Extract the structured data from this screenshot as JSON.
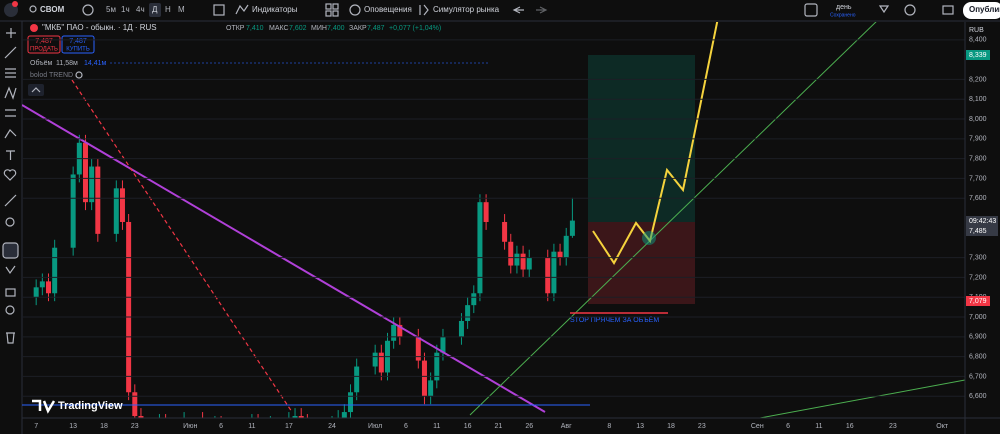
{
  "toolbar": {
    "symbol": "СВОМ",
    "intervals": [
      "5м",
      "1ч",
      "4ч",
      "Д",
      "Н",
      "М"
    ],
    "indicators": "Индикаторы",
    "alerts": "Оповещения",
    "replay": "Симулятор рынка",
    "timeframe": "день",
    "saved": "Сохранено",
    "publish": "Опублико"
  },
  "legend": {
    "symbol": "\"МКБ\" ПАО - обыкн. · 1Д · RUS",
    "open_label": "ОТКР",
    "open": "7,410",
    "high_label": "МАКС",
    "high": "7,602",
    "low_label": "МИН",
    "low": "7,400",
    "close_label": "ЗАКР",
    "close": "7,487",
    "change": "+0,077 (+1,04%)",
    "sell_price": "7,487",
    "sell": "ПРОДАТЬ",
    "buy_price": "7,487",
    "buy": "КУПИТЬ",
    "volume_label": "Объём",
    "volume": "11,58м",
    "volume_ma": "14,41м",
    "indicator": "bolod TREND"
  },
  "price_labels": {
    "target": "8,339",
    "time": "09:42:43",
    "last": "7,485",
    "stop": "7,079"
  },
  "annotation": "STOP ПРЯЧЕМ ЗА ОБЪЁМ",
  "brand": "TradingView",
  "chart_data": {
    "type": "candlestick",
    "currency": "RUB",
    "up_color": "#089981",
    "down_color": "#f23645",
    "xlim": [
      -2.3,
      150.7
    ],
    "ylim": [
      6.49,
      8.49
    ],
    "xticks": [
      {
        "value": 0,
        "label": "7"
      },
      {
        "value": 6,
        "label": "13"
      },
      {
        "value": 11,
        "label": "18"
      },
      {
        "value": 16,
        "label": "23"
      },
      {
        "value": 25,
        "label": "Июн"
      },
      {
        "value": 30,
        "label": "6"
      },
      {
        "value": 35,
        "label": "11"
      },
      {
        "value": 41,
        "label": "17"
      },
      {
        "value": 48,
        "label": "24"
      },
      {
        "value": 55,
        "label": "Июл"
      },
      {
        "value": 60,
        "label": "6"
      },
      {
        "value": 65,
        "label": "11"
      },
      {
        "value": 70,
        "label": "16"
      },
      {
        "value": 75,
        "label": "21"
      },
      {
        "value": 80,
        "label": "26"
      },
      {
        "value": 86,
        "label": "Авг"
      },
      {
        "value": 93,
        "label": "8"
      },
      {
        "value": 98,
        "label": "13"
      },
      {
        "value": 103,
        "label": "18"
      },
      {
        "value": 108,
        "label": "23"
      },
      {
        "value": 117,
        "label": "Сен"
      },
      {
        "value": 122,
        "label": "6"
      },
      {
        "value": 127,
        "label": "11"
      },
      {
        "value": 132,
        "label": "16"
      },
      {
        "value": 139,
        "label": "23"
      },
      {
        "value": 147,
        "label": "Окт"
      }
    ],
    "yticks": [
      {
        "value": 6.6,
        "label": "6,600"
      },
      {
        "value": 6.7,
        "label": "6,700"
      },
      {
        "value": 6.8,
        "label": "6,800"
      },
      {
        "value": 6.9,
        "label": "6,900"
      },
      {
        "value": 7.0,
        "label": "7,000"
      },
      {
        "value": 7.1,
        "label": "7,100"
      },
      {
        "value": 7.2,
        "label": "7,200"
      },
      {
        "value": 7.3,
        "label": "7,300"
      },
      {
        "value": 7.6,
        "label": "7,600"
      },
      {
        "value": 7.7,
        "label": "7,700"
      },
      {
        "value": 7.8,
        "label": "7,800"
      },
      {
        "value": 7.9,
        "label": "7,900"
      },
      {
        "value": 8.0,
        "label": "8,000"
      },
      {
        "value": 8.1,
        "label": "8,100"
      },
      {
        "value": 8.2,
        "label": "8,200"
      },
      {
        "value": 8.4,
        "label": "8,400"
      }
    ],
    "x": [
      0,
      1,
      2,
      3,
      6,
      7,
      8,
      9,
      10,
      13,
      14,
      15,
      16,
      17,
      20,
      21,
      22,
      23,
      24,
      27,
      28,
      29,
      30,
      31,
      34,
      35,
      36,
      37,
      38,
      41,
      42,
      43,
      44,
      45,
      48,
      49,
      50,
      51,
      52,
      55,
      56,
      57,
      58,
      59,
      62,
      63,
      64,
      65,
      66,
      69,
      70,
      71,
      72,
      73,
      76,
      77,
      78,
      79,
      80,
      83,
      84,
      85,
      86,
      87
    ],
    "ohlc": [
      [
        7.1,
        7.19,
        7.06,
        7.15
      ],
      [
        7.15,
        7.22,
        7.11,
        7.18
      ],
      [
        7.18,
        7.22,
        7.08,
        7.12
      ],
      [
        7.12,
        7.39,
        7.08,
        7.35
      ],
      [
        7.35,
        7.76,
        7.31,
        7.72
      ],
      [
        7.72,
        7.92,
        7.68,
        7.88
      ],
      [
        7.88,
        7.92,
        7.54,
        7.58
      ],
      [
        7.58,
        7.8,
        7.54,
        7.76
      ],
      [
        7.76,
        7.8,
        7.38,
        7.42
      ],
      [
        7.42,
        7.69,
        7.38,
        7.65
      ],
      [
        7.65,
        7.69,
        7.44,
        7.48
      ],
      [
        7.48,
        7.52,
        6.58,
        6.62
      ],
      [
        6.62,
        6.66,
        6.46,
        6.5
      ],
      [
        6.5,
        6.54,
        6.4,
        6.44
      ],
      [
        6.44,
        6.51,
        6.4,
        6.47
      ],
      [
        6.47,
        6.51,
        6.39,
        6.43
      ],
      [
        6.43,
        6.47,
        6.36,
        6.4
      ],
      [
        6.4,
        6.49,
        6.36,
        6.45
      ],
      [
        6.45,
        6.52,
        6.41,
        6.48
      ],
      [
        6.48,
        6.52,
        6.4,
        6.44
      ],
      [
        6.44,
        6.48,
        6.38,
        6.42
      ],
      [
        6.42,
        6.5,
        6.38,
        6.46
      ],
      [
        6.46,
        6.5,
        6.39,
        6.43
      ],
      [
        6.43,
        6.47,
        6.37,
        6.41
      ],
      [
        6.41,
        6.49,
        6.37,
        6.45
      ],
      [
        6.45,
        6.51,
        6.41,
        6.47
      ],
      [
        6.47,
        6.51,
        6.4,
        6.44
      ],
      [
        6.44,
        6.48,
        6.38,
        6.42
      ],
      [
        6.42,
        6.5,
        6.38,
        6.46
      ],
      [
        6.46,
        6.52,
        6.42,
        6.48
      ],
      [
        6.48,
        6.54,
        6.44,
        6.5
      ],
      [
        6.5,
        6.54,
        6.43,
        6.47
      ],
      [
        6.47,
        6.51,
        6.41,
        6.45
      ],
      [
        6.45,
        6.49,
        6.39,
        6.43
      ],
      [
        6.43,
        6.5,
        6.39,
        6.46
      ],
      [
        6.46,
        6.53,
        6.42,
        6.49
      ],
      [
        6.49,
        6.56,
        6.45,
        6.52
      ],
      [
        6.52,
        6.66,
        6.48,
        6.62
      ],
      [
        6.62,
        6.79,
        6.58,
        6.75
      ],
      [
        6.75,
        6.86,
        6.71,
        6.82
      ],
      [
        6.82,
        6.86,
        6.68,
        6.72
      ],
      [
        6.72,
        6.92,
        6.68,
        6.88
      ],
      [
        6.88,
        7.0,
        6.84,
        6.96
      ],
      [
        6.96,
        7.0,
        6.86,
        6.9
      ],
      [
        6.9,
        6.94,
        6.74,
        6.78
      ],
      [
        6.78,
        6.82,
        6.56,
        6.6
      ],
      [
        6.6,
        6.72,
        6.56,
        6.68
      ],
      [
        6.68,
        6.86,
        6.64,
        6.82
      ],
      [
        6.82,
        6.94,
        6.78,
        6.9
      ],
      [
        6.9,
        7.02,
        6.86,
        6.98
      ],
      [
        6.98,
        7.1,
        6.94,
        7.06
      ],
      [
        7.06,
        7.16,
        7.02,
        7.12
      ],
      [
        7.12,
        7.62,
        7.08,
        7.58
      ],
      [
        7.58,
        7.62,
        7.44,
        7.48
      ],
      [
        7.48,
        7.52,
        7.34,
        7.38
      ],
      [
        7.38,
        7.42,
        7.22,
        7.26
      ],
      [
        7.26,
        7.36,
        7.22,
        7.32
      ],
      [
        7.32,
        7.36,
        7.2,
        7.24
      ],
      [
        7.24,
        7.34,
        7.2,
        7.3
      ],
      [
        7.3,
        7.34,
        7.08,
        7.12
      ],
      [
        7.12,
        7.37,
        7.08,
        7.33
      ],
      [
        7.33,
        7.37,
        7.26,
        7.3
      ],
      [
        7.3,
        7.45,
        7.26,
        7.41
      ],
      [
        7.41,
        7.602,
        7.4,
        7.487
      ]
    ]
  }
}
